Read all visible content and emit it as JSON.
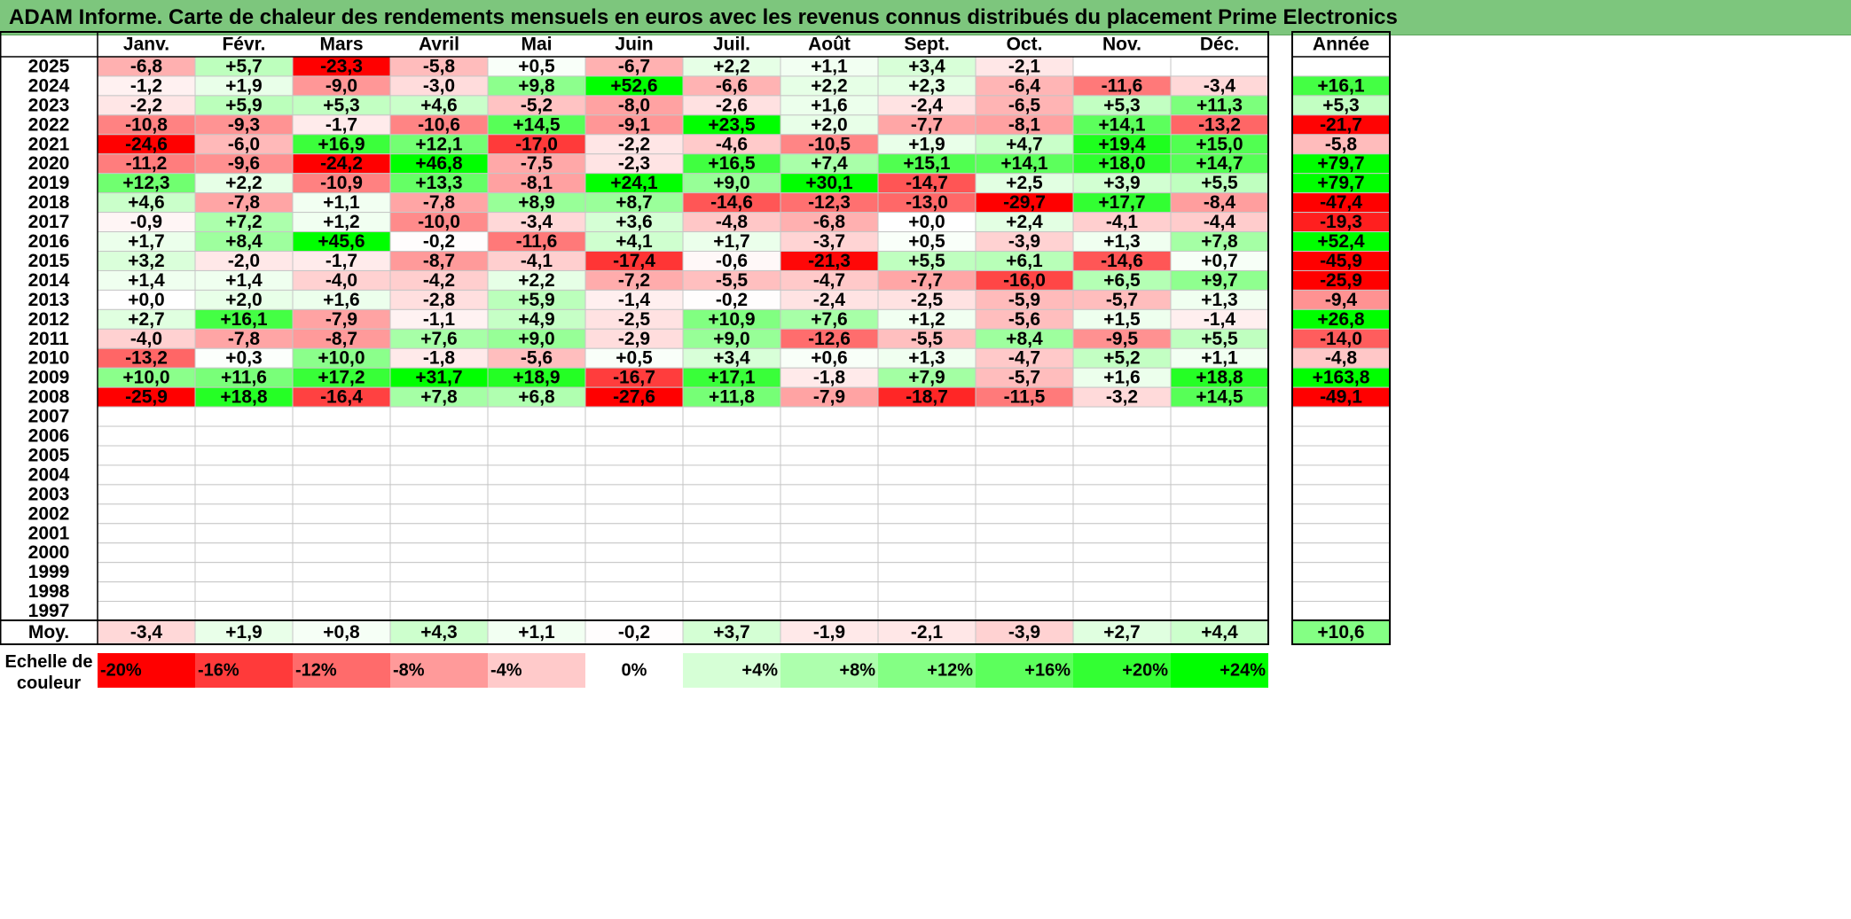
{
  "title": "ADAM Informe. Carte de chaleur des rendements mensuels en euros avec les revenus connus distribués du placement Prime Electronics",
  "chart_data": {
    "type": "heatmap",
    "months": [
      "Janv.",
      "Févr.",
      "Mars",
      "Avril",
      "Mai",
      "Juin",
      "Juil.",
      "Août",
      "Sept.",
      "Oct.",
      "Nov.",
      "Déc."
    ],
    "year_header": "Année",
    "rows": [
      {
        "year": "2025",
        "values": [
          "-6,8",
          "+5,7",
          "-23,3",
          "-5,8",
          "+0,5",
          "-6,7",
          "+2,2",
          "+1,1",
          "+3,4",
          "-2,1",
          "",
          ""
        ],
        "annual": ""
      },
      {
        "year": "2024",
        "values": [
          "-1,2",
          "+1,9",
          "-9,0",
          "-3,0",
          "+9,8",
          "+52,6",
          "-6,6",
          "+2,2",
          "+2,3",
          "-6,4",
          "-11,6",
          "-3,4"
        ],
        "annual": "+16,1"
      },
      {
        "year": "2023",
        "values": [
          "-2,2",
          "+5,9",
          "+5,3",
          "+4,6",
          "-5,2",
          "-8,0",
          "-2,6",
          "+1,6",
          "-2,4",
          "-6,5",
          "+5,3",
          "+11,3"
        ],
        "annual": "+5,3"
      },
      {
        "year": "2022",
        "values": [
          "-10,8",
          "-9,3",
          "-1,7",
          "-10,6",
          "+14,5",
          "-9,1",
          "+23,5",
          "+2,0",
          "-7,7",
          "-8,1",
          "+14,1",
          "-13,2"
        ],
        "annual": "-21,7"
      },
      {
        "year": "2021",
        "values": [
          "-24,6",
          "-6,0",
          "+16,9",
          "+12,1",
          "-17,0",
          "-2,2",
          "-4,6",
          "-10,5",
          "+1,9",
          "+4,7",
          "+19,4",
          "+15,0"
        ],
        "annual": "-5,8"
      },
      {
        "year": "2020",
        "values": [
          "-11,2",
          "-9,6",
          "-24,2",
          "+46,8",
          "-7,5",
          "-2,3",
          "+16,5",
          "+7,4",
          "+15,1",
          "+14,1",
          "+18,0",
          "+14,7"
        ],
        "annual": "+79,7"
      },
      {
        "year": "2019",
        "values": [
          "+12,3",
          "+2,2",
          "-10,9",
          "+13,3",
          "-8,1",
          "+24,1",
          "+9,0",
          "+30,1",
          "-14,7",
          "+2,5",
          "+3,9",
          "+5,5"
        ],
        "annual": "+79,7"
      },
      {
        "year": "2018",
        "values": [
          "+4,6",
          "-7,8",
          "+1,1",
          "-7,8",
          "+8,9",
          "+8,7",
          "-14,6",
          "-12,3",
          "-13,0",
          "-29,7",
          "+17,7",
          "-8,4"
        ],
        "annual": "-47,4"
      },
      {
        "year": "2017",
        "values": [
          "-0,9",
          "+7,2",
          "+1,2",
          "-10,0",
          "-3,4",
          "+3,6",
          "-4,8",
          "-6,8",
          "+0,0",
          "+2,4",
          "-4,1",
          "-4,4"
        ],
        "annual": "-19,3"
      },
      {
        "year": "2016",
        "values": [
          "+1,7",
          "+8,4",
          "+45,6",
          "-0,2",
          "-11,6",
          "+4,1",
          "+1,7",
          "-3,7",
          "+0,5",
          "-3,9",
          "+1,3",
          "+7,8"
        ],
        "annual": "+52,4"
      },
      {
        "year": "2015",
        "values": [
          "+3,2",
          "-2,0",
          "-1,7",
          "-8,7",
          "-4,1",
          "-17,4",
          "-0,6",
          "-21,3",
          "+5,5",
          "+6,1",
          "-14,6",
          "+0,7"
        ],
        "annual": "-45,9"
      },
      {
        "year": "2014",
        "values": [
          "+1,4",
          "+1,4",
          "-4,0",
          "-4,2",
          "+2,2",
          "-7,2",
          "-5,5",
          "-4,7",
          "-7,7",
          "-16,0",
          "+6,5",
          "+9,7"
        ],
        "annual": "-25,9"
      },
      {
        "year": "2013",
        "values": [
          "+0,0",
          "+2,0",
          "+1,6",
          "-2,8",
          "+5,9",
          "-1,4",
          "-0,2",
          "-2,4",
          "-2,5",
          "-5,9",
          "-5,7",
          "+1,3"
        ],
        "annual": "-9,4"
      },
      {
        "year": "2012",
        "values": [
          "+2,7",
          "+16,1",
          "-7,9",
          "-1,1",
          "+4,9",
          "-2,5",
          "+10,9",
          "+7,6",
          "+1,2",
          "-5,6",
          "+1,5",
          "-1,4"
        ],
        "annual": "+26,8"
      },
      {
        "year": "2011",
        "values": [
          "-4,0",
          "-7,8",
          "-8,7",
          "+7,6",
          "+9,0",
          "-2,9",
          "+9,0",
          "-12,6",
          "-5,5",
          "+8,4",
          "-9,5",
          "+5,5"
        ],
        "annual": "-14,0"
      },
      {
        "year": "2010",
        "values": [
          "-13,2",
          "+0,3",
          "+10,0",
          "-1,8",
          "-5,6",
          "+0,5",
          "+3,4",
          "+0,6",
          "+1,3",
          "-4,7",
          "+5,2",
          "+1,1"
        ],
        "annual": "-4,8"
      },
      {
        "year": "2009",
        "values": [
          "+10,0",
          "+11,6",
          "+17,2",
          "+31,7",
          "+18,9",
          "-16,7",
          "+17,1",
          "-1,8",
          "+7,9",
          "-5,7",
          "+1,6",
          "+18,8"
        ],
        "annual": "+163,8"
      },
      {
        "year": "2008",
        "values": [
          "-25,9",
          "+18,8",
          "-16,4",
          "+7,8",
          "+6,8",
          "-27,6",
          "+11,8",
          "-7,9",
          "-18,7",
          "-11,5",
          "-3,2",
          "+14,5"
        ],
        "annual": "-49,1"
      },
      {
        "year": "2007",
        "values": [
          "",
          "",
          "",
          "",
          "",
          "",
          "",
          "",
          "",
          "",
          "",
          ""
        ],
        "annual": ""
      },
      {
        "year": "2006",
        "values": [
          "",
          "",
          "",
          "",
          "",
          "",
          "",
          "",
          "",
          "",
          "",
          ""
        ],
        "annual": ""
      },
      {
        "year": "2005",
        "values": [
          "",
          "",
          "",
          "",
          "",
          "",
          "",
          "",
          "",
          "",
          "",
          ""
        ],
        "annual": ""
      },
      {
        "year": "2004",
        "values": [
          "",
          "",
          "",
          "",
          "",
          "",
          "",
          "",
          "",
          "",
          "",
          ""
        ],
        "annual": ""
      },
      {
        "year": "2003",
        "values": [
          "",
          "",
          "",
          "",
          "",
          "",
          "",
          "",
          "",
          "",
          "",
          ""
        ],
        "annual": ""
      },
      {
        "year": "2002",
        "values": [
          "",
          "",
          "",
          "",
          "",
          "",
          "",
          "",
          "",
          "",
          "",
          ""
        ],
        "annual": ""
      },
      {
        "year": "2001",
        "values": [
          "",
          "",
          "",
          "",
          "",
          "",
          "",
          "",
          "",
          "",
          "",
          ""
        ],
        "annual": ""
      },
      {
        "year": "2000",
        "values": [
          "",
          "",
          "",
          "",
          "",
          "",
          "",
          "",
          "",
          "",
          "",
          ""
        ],
        "annual": ""
      },
      {
        "year": "1999",
        "values": [
          "",
          "",
          "",
          "",
          "",
          "",
          "",
          "",
          "",
          "",
          "",
          ""
        ],
        "annual": ""
      },
      {
        "year": "1998",
        "values": [
          "",
          "",
          "",
          "",
          "",
          "",
          "",
          "",
          "",
          "",
          "",
          ""
        ],
        "annual": ""
      },
      {
        "year": "1997",
        "values": [
          "",
          "",
          "",
          "",
          "",
          "",
          "",
          "",
          "",
          "",
          "",
          ""
        ],
        "annual": ""
      }
    ],
    "average": {
      "label": "Moy.",
      "values": [
        "-3,4",
        "+1,9",
        "+0,8",
        "+4,3",
        "+1,1",
        "-0,2",
        "+3,7",
        "-1,9",
        "-2,1",
        "-3,9",
        "+2,7",
        "+4,4"
      ],
      "annual": "+10,6"
    },
    "scale": {
      "label_line1": "Echelle de",
      "label_line2": "couleur",
      "stops": [
        {
          "label": "-20%",
          "color": "#ff0000"
        },
        {
          "label": "-16%",
          "color": "#ff3a3a"
        },
        {
          "label": "-12%",
          "color": "#ff6b6b"
        },
        {
          "label": "-8%",
          "color": "#ff9a9a"
        },
        {
          "label": "-4%",
          "color": "#ffcaca"
        },
        {
          "label": "0%",
          "color": "#ffffff"
        },
        {
          "label": "+4%",
          "color": "#d6ffd6"
        },
        {
          "label": "+8%",
          "color": "#adffad"
        },
        {
          "label": "+12%",
          "color": "#84ff84"
        },
        {
          "label": "+16%",
          "color": "#5cff5c"
        },
        {
          "label": "+20%",
          "color": "#33ff33"
        },
        {
          "label": "+24%",
          "color": "#00ff00"
        }
      ]
    },
    "colors": {
      "negative_max": "#ff0000",
      "neutral": "#ffffff",
      "positive_max": "#00ff00",
      "title_bar": "#7dc67d"
    }
  }
}
